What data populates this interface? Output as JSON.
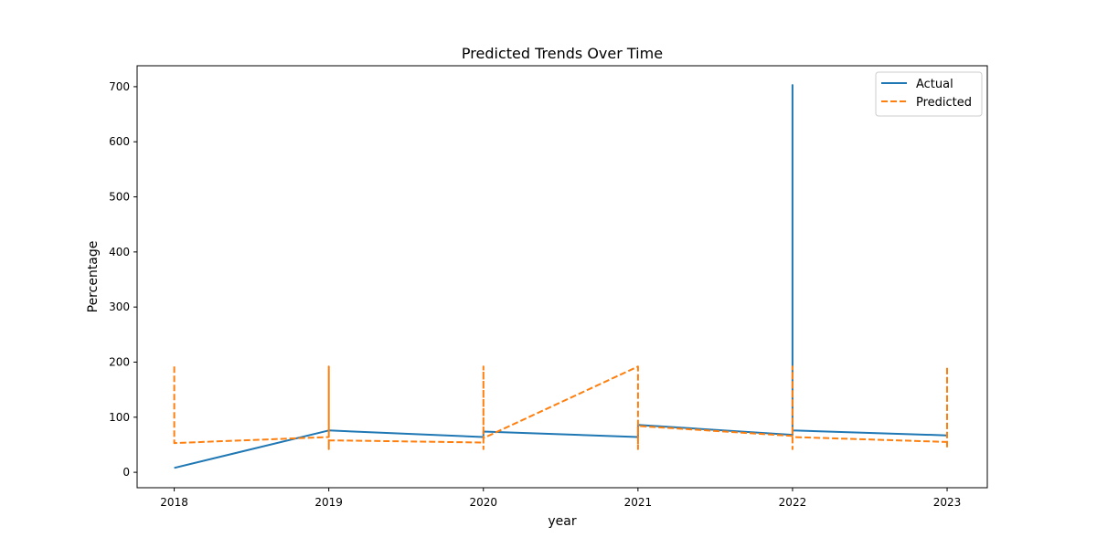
{
  "chart_data": {
    "type": "line",
    "title": "Predicted Trends Over Time",
    "xlabel": "year",
    "ylabel": "Percentage",
    "xlim": [
      2017.76,
      2023.26
    ],
    "ylim": [
      -28,
      738
    ],
    "xticks": [
      2018,
      2019,
      2020,
      2021,
      2022,
      2023
    ],
    "yticks": [
      0,
      100,
      200,
      300,
      400,
      500,
      600,
      700
    ],
    "grid": false,
    "legend_position": "top-right",
    "series": [
      {
        "name": "Actual",
        "color": "#1f77b4",
        "style": "solid",
        "points": [
          [
            2018,
            8
          ],
          [
            2018,
            8
          ],
          [
            2019,
            76
          ],
          [
            2019,
            76
          ],
          [
            2020,
            64
          ],
          [
            2020,
            74
          ],
          [
            2021,
            64
          ],
          [
            2021,
            86
          ],
          [
            2022,
            68
          ],
          [
            2022,
            703
          ],
          [
            2022,
            76
          ],
          [
            2023,
            67
          ],
          [
            2023,
            67
          ]
        ]
      },
      {
        "name": "Predicted",
        "color": "#ff7f0e",
        "style": "dashed",
        "points": [
          [
            2018,
            192
          ],
          [
            2018,
            53
          ],
          [
            2019,
            64
          ],
          [
            2019,
            192
          ],
          [
            2019,
            42
          ],
          [
            2019,
            58
          ],
          [
            2020,
            54
          ],
          [
            2020,
            192
          ],
          [
            2020,
            42
          ],
          [
            2020,
            62
          ],
          [
            2021,
            192
          ],
          [
            2021,
            42
          ],
          [
            2021,
            84
          ],
          [
            2022,
            66
          ],
          [
            2022,
            192
          ],
          [
            2022,
            42
          ],
          [
            2022,
            64
          ],
          [
            2023,
            55
          ],
          [
            2023,
            192
          ],
          [
            2023,
            42
          ]
        ]
      }
    ]
  }
}
